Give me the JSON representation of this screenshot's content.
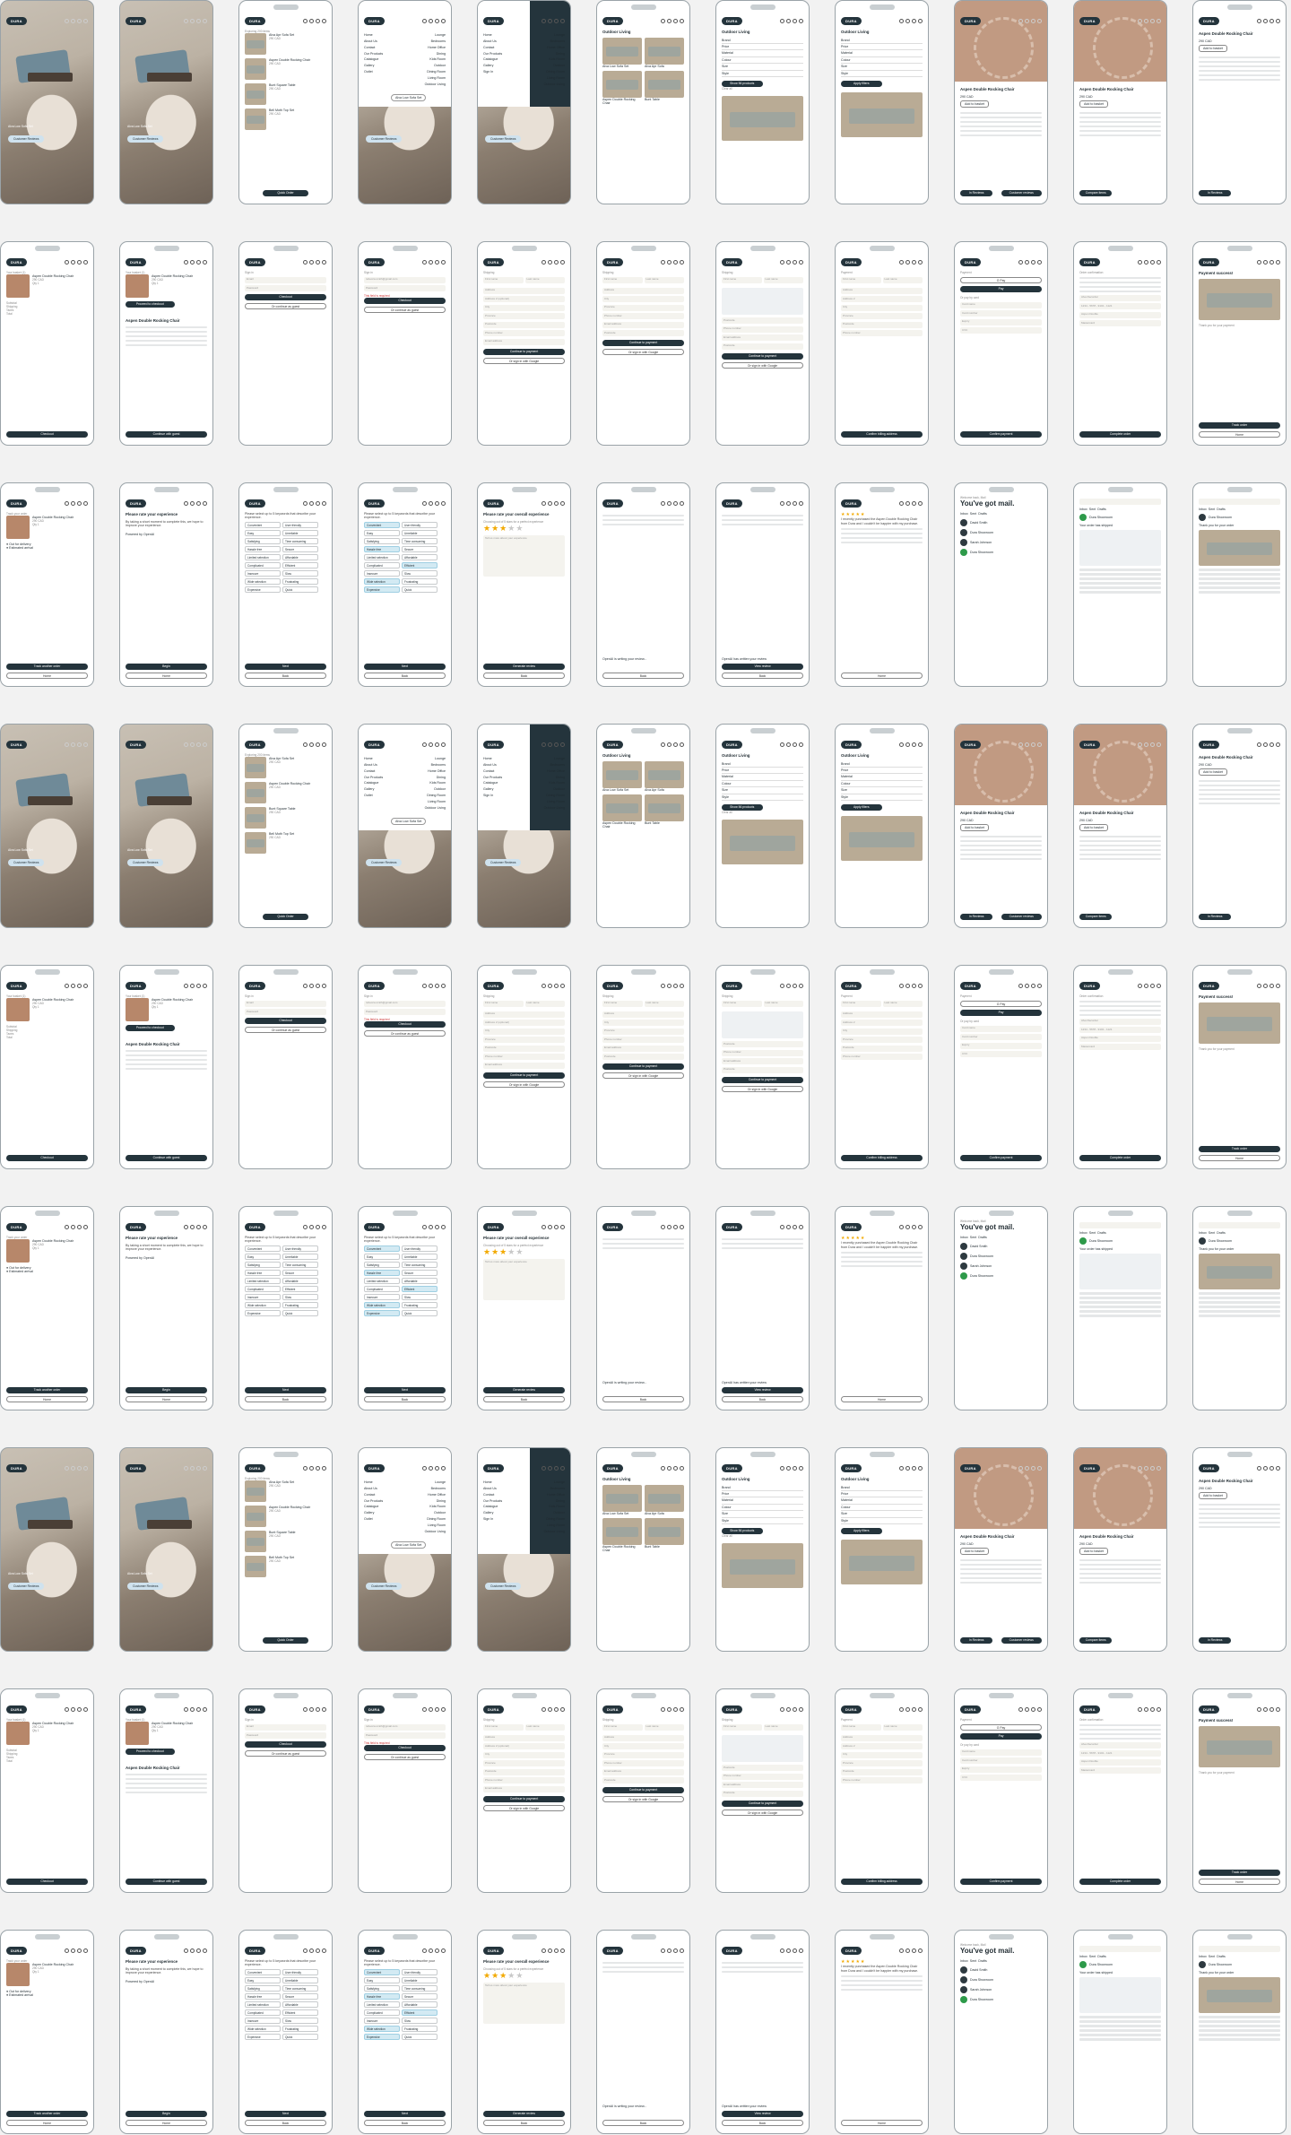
{
  "common": {
    "logo": "DURA"
  },
  "rows": [
    [
      {
        "type": "hero",
        "headline": "Alva Low Sofa Set",
        "button": "Customer Reviews"
      },
      {
        "type": "hero",
        "headline": "Alva Low Sofa Set",
        "button": "Customer Reviews"
      },
      {
        "type": "cartlist",
        "title": "Exploring 200 items",
        "items": [
          {
            "name": "Alva Apr Sofa Set",
            "price": "290 CAD"
          },
          {
            "name": "Aspen Double Rocking Chair",
            "price": "290 CAD"
          },
          {
            "name": "Bunt Square Table",
            "price": "290 CAD"
          },
          {
            "name": "Bell Moth Top Set",
            "price": "290 CAD"
          }
        ],
        "button": "Quick Order"
      },
      {
        "type": "menu",
        "left": [
          "Home",
          "About Us",
          "Contact",
          "Our Products",
          "Catalogue",
          "Gallery",
          "Outlet"
        ],
        "right": [
          "Lounge",
          "Bedrooms",
          "Home Office",
          "Dining",
          "Kids Room",
          "Outdoor",
          "Dining Room",
          "Living Room",
          "Outdoor Living"
        ],
        "pill": "Alva Low Sofa Set",
        "button": "Customer Reviews"
      },
      {
        "type": "menudark",
        "left": [
          "Home",
          "About Us",
          "Contact",
          "Our Products",
          "Catalogue",
          "Gallery",
          "Sign In"
        ],
        "right": [
          "Lounge",
          "Bedrooms",
          "Home Office",
          "Dining",
          "Kids Room",
          "Outdoor",
          "Dining Room",
          "Living Room",
          "Outdoor Living"
        ],
        "button": "Customer Reviews"
      },
      {
        "type": "grid",
        "title": "Outdoor Living",
        "items": [
          "Alva Low Sofa Set",
          "Alva Apr Sofa",
          "Aspen Double Rocking Chair",
          "Bunt Table"
        ]
      },
      {
        "type": "filter",
        "title": "Outdoor Living",
        "filters": [
          "Brand",
          "Price",
          "Material",
          "Colour",
          "Size",
          "Style"
        ],
        "button": "Show 56 products",
        "button2": "Clear all"
      },
      {
        "type": "filter2",
        "title": "Outdoor Living",
        "filters": [
          "Brand",
          "Price",
          "Material",
          "Colour",
          "Size",
          "Style"
        ],
        "button": "Apply filters"
      },
      {
        "type": "productcover",
        "title": "Aspen Double Rocking Chair",
        "price": "290 CAD",
        "sub": "Add to basket",
        "b1": "In Reviews",
        "b2": "Customer reviews"
      },
      {
        "type": "productdetail",
        "title": "Aspen Double Rocking Chair",
        "price": "290 CAD",
        "sub": "Add to basket",
        "b1": "Compare items"
      },
      {
        "type": "productplain",
        "title": "Aspen Double Rocking Chair",
        "price": "290 CAD",
        "sub": "Add to basket",
        "b1": "In Reviews"
      }
    ],
    [
      {
        "type": "basket",
        "title": "Your basket (1)",
        "item": "Aspen Double Rocking Chair",
        "price": "290 CAD",
        "qty": "Qty 1",
        "lines": [
          "Subtotal",
          "Shipping",
          "Taxes",
          "Total"
        ],
        "button": "Checkout"
      },
      {
        "type": "basketimg",
        "title": "Your basket (1)",
        "item": "Aspen Double Rocking Chair",
        "price": "290 CAD",
        "qty": "Qty 1",
        "b1": "Proceed to checkout",
        "pname": "Aspen Double Rocking Chair",
        "button": "Continue with guest"
      },
      {
        "type": "signin",
        "title": "Sign in",
        "fields": [
          "Email",
          "Password"
        ],
        "button": "Checkout",
        "button2": "Or continue as guest"
      },
      {
        "type": "signinerr",
        "title": "Sign in",
        "fields": [
          "rebecca.smith@gmail.com",
          "Password"
        ],
        "err": "This field is required",
        "button": "Checkout",
        "button2": "Or continue as guest"
      },
      {
        "type": "shipform",
        "title": "Shipping",
        "fields": [
          "First name",
          "Last name",
          "Address",
          "Address 2 (optional)",
          "City",
          "Province",
          "Postcode",
          "Phone number",
          "Email address"
        ],
        "button": "Continue to payment",
        "button2": "Or sign in with Google"
      },
      {
        "type": "shipform2",
        "title": "Shipping",
        "fields": [
          "First name",
          "Last name",
          "Address",
          "City",
          "Province",
          "Phone number",
          "Email address",
          "Postcode"
        ],
        "button": "Continue to payment",
        "button2": "Or sign in with Google"
      },
      {
        "type": "shipmap",
        "title": "Shipping",
        "fields": [
          "First name",
          "Last name",
          "Postcode",
          "Phone number",
          "Email address",
          "Postcode"
        ],
        "button": "Continue to payment",
        "button2": "Or sign in with Google"
      },
      {
        "type": "payaddr",
        "title": "Payment",
        "fields": [
          "First name",
          "Last name",
          "Address",
          "Address 2",
          "City",
          "Province",
          "Postcode",
          "Phone number"
        ],
        "button": "Confirm billing address"
      },
      {
        "type": "paymethod",
        "title": "Payment",
        "opts": [
          "G Pay",
          "Pay"
        ],
        "label": "Or pay by card",
        "fields": [
          "Card name",
          "Card number",
          "Expiry",
          "CVC"
        ],
        "button": "Confirm payment"
      },
      {
        "type": "order",
        "title": "Order confirmation",
        "lines": [
          "Alva Recorder",
          "1234 - 5678 - 9101 - 1121",
          "Aspen Double",
          "Mastercard"
        ],
        "button": "Complete order"
      },
      {
        "type": "success",
        "title": "Payment success!",
        "text": "Thank you for your payment",
        "b1": "Track order",
        "b2": "Home"
      }
    ],
    [
      {
        "type": "track",
        "title": "Track your order",
        "item": "Aspen Double Rocking Chair",
        "price": "290 CAD",
        "qty": "Qty 1",
        "steps": [
          "Out for delivery",
          "Estimated arrival"
        ],
        "b1": "Track another order",
        "b2": "Home"
      },
      {
        "type": "rate",
        "title": "Please rate your experience",
        "text": "By taking a short moment to complete this, we hope to improve your experience.",
        "powered": "Powered by OpenAI",
        "b1": "Begin",
        "b2": "Home"
      },
      {
        "type": "chips",
        "title": "Please select up to 5 keywords that describe your experience.",
        "chips": [
          "Convenient",
          "User friendly",
          "Easy",
          "Unreliable",
          "Satisfying",
          "Time consuming",
          "Hassle free",
          "Secure",
          "Limited selection",
          "Affordable",
          "Complicated",
          "Efficient",
          "Insecure",
          "Slow",
          "Wide selection",
          "Frustrating",
          "Expensive",
          "Quick"
        ],
        "on": [],
        "b1": "Next",
        "b2": "Back"
      },
      {
        "type": "chips",
        "title": "Please select up to 5 keywords that describe your experience.",
        "chips": [
          "Convenient",
          "User friendly",
          "Easy",
          "Unreliable",
          "Satisfying",
          "Time consuming",
          "Hassle free",
          "Secure",
          "Limited selection",
          "Affordable",
          "Complicated",
          "Efficient",
          "Insecure",
          "Slow",
          "Wide selection",
          "Frustrating",
          "Expensive",
          "Quick"
        ],
        "on": [
          0,
          6,
          11,
          14,
          16
        ],
        "b1": "Next",
        "b2": "Back"
      },
      {
        "type": "stars",
        "title": "Please rate your overall experience",
        "sub": "Choosing out of 5 stars for a perfect experience",
        "placeholder": "Tell us more about your experience",
        "filled": 3,
        "b1": "Generate review",
        "b2": "Back"
      },
      {
        "type": "writing",
        "text": "OpenAI is writing your review...",
        "b1": "Back"
      },
      {
        "type": "written",
        "text": "OpenAI has written your review",
        "b1": "View review",
        "b2": "Back"
      },
      {
        "type": "review",
        "title": "Your review",
        "text": "I recently purchased the Aspen Double Rocking Chair from Dura and I couldn't be happier with my purchase.",
        "b1": "Home"
      },
      {
        "type": "mail",
        "greet": "Welcome back, Mail",
        "title": "You've got mail.",
        "tabs": [
          "Inbox",
          "Sent",
          "Drafts"
        ],
        "items": [
          "David Smith",
          "Dura Showroom",
          "Sarah Johnson",
          "Dura Showroom"
        ]
      },
      {
        "type": "maildetail",
        "tabs": [
          "Inbox",
          "Sent",
          "Drafts"
        ],
        "from": "Dura Showroom",
        "subject": "Your order has shipped"
      },
      {
        "type": "maildetail2",
        "tabs": [
          "Inbox",
          "Sent",
          "Drafts"
        ],
        "from": "Dura Showroom",
        "subject": "Thank you for your order"
      }
    ]
  ]
}
